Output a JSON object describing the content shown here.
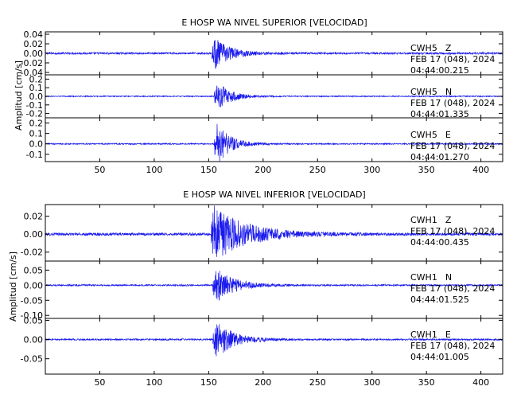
{
  "colors": {
    "trace": "#1a1aee",
    "axis": "#000000",
    "background": "#ffffff"
  },
  "chart_data": [
    {
      "type": "line",
      "title": "E HOSP WA NIVEL SUPERIOR [VELOCIDAD]",
      "ylabel": "Amplitud [cm/s]",
      "xlabel": "",
      "xlim": [
        0,
        420
      ],
      "x_ticks": [
        "50",
        "100",
        "150",
        "200",
        "250",
        "300",
        "350",
        "400"
      ],
      "x_tick_values": [
        50,
        100,
        150,
        200,
        250,
        300,
        350,
        400
      ],
      "traces": [
        {
          "station": "CWH5",
          "component": "Z",
          "date": "FEB 17 (048), 2024",
          "time": "04:44:00.215",
          "ylim": [
            -0.045,
            0.045
          ],
          "y_ticks": [
            "0.04",
            "0.02",
            "0.00",
            "-0.02",
            "-0.04"
          ],
          "y_tick_values": [
            0.04,
            0.02,
            0.0,
            -0.02,
            -0.04
          ],
          "onset_s": 153,
          "peak": 0.032,
          "noise": 0.002,
          "decay_s": 14
        },
        {
          "station": "CWH5",
          "component": "N",
          "date": "FEB 17 (048), 2024",
          "time": "04:44:01.335",
          "ylim": [
            -0.25,
            0.25
          ],
          "y_ticks": [
            "0.2",
            "0.1",
            "0.0",
            "-0.1",
            "-0.2"
          ],
          "y_tick_values": [
            0.2,
            0.1,
            0.0,
            -0.1,
            -0.2
          ],
          "onset_s": 155,
          "peak": 0.17,
          "noise": 0.006,
          "decay_s": 12
        },
        {
          "station": "CWH5",
          "component": "E",
          "date": "FEB 17 (048), 2024",
          "time": "04:44:01.270",
          "ylim": [
            -0.17,
            0.25
          ],
          "y_ticks": [
            "0.2",
            "0.1",
            "0.0",
            "-0.1"
          ],
          "y_tick_values": [
            0.2,
            0.1,
            0.0,
            -0.1
          ],
          "onset_s": 155,
          "peak": 0.2,
          "noise": 0.006,
          "decay_s": 12
        }
      ]
    },
    {
      "type": "line",
      "title": "E HOSP WA NIVEL INFERIOR [VELOCIDAD]",
      "ylabel": "Amplitud [cm/s]",
      "xlabel": "",
      "xlim": [
        0,
        420
      ],
      "x_ticks": [
        "50",
        "100",
        "150",
        "200",
        "250",
        "300",
        "350",
        "400"
      ],
      "x_tick_values": [
        50,
        100,
        150,
        200,
        250,
        300,
        350,
        400
      ],
      "traces": [
        {
          "station": "CWH1",
          "component": "Z",
          "date": "FEB 17 (048), 2024",
          "time": "04:44:00.435",
          "ylim": [
            -0.03,
            0.033
          ],
          "y_ticks": [
            "0.02",
            "0.00",
            "-0.02"
          ],
          "y_tick_values": [
            0.02,
            0.0,
            -0.02
          ],
          "onset_s": 152,
          "peak": 0.031,
          "noise": 0.0015,
          "decay_s": 30
        },
        {
          "station": "CWH1",
          "component": "N",
          "date": "FEB 17 (048), 2024",
          "time": "04:44:01.525",
          "ylim": [
            -0.11,
            0.08
          ],
          "y_ticks": [
            "0.05",
            "0.00",
            "-0.05",
            "-0.10"
          ],
          "y_tick_values": [
            0.05,
            0.0,
            -0.05,
            -0.1
          ],
          "onset_s": 154,
          "peak": 0.06,
          "noise": 0.0025,
          "decay_s": 16
        },
        {
          "station": "CWH1",
          "component": "E",
          "date": "FEB 17 (048), 2024",
          "time": "04:44:01.005",
          "ylim": [
            -0.09,
            0.055
          ],
          "y_ticks": [
            "0.05",
            "0.00",
            "-0.05"
          ],
          "y_tick_values": [
            0.05,
            0.0,
            -0.05
          ],
          "onset_s": 154,
          "peak": 0.05,
          "noise": 0.002,
          "decay_s": 16
        }
      ]
    }
  ]
}
